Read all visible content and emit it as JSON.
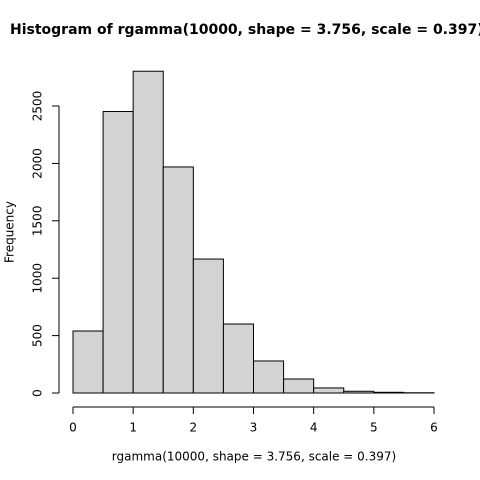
{
  "chart_data": {
    "type": "histogram",
    "title": "Histogram of rgamma(10000, shape = 3.756, scale = 0.397)",
    "x_label": "rgamma(10000, shape = 3.756, scale = 0.397)",
    "y_label": "Frequency",
    "bins": [
      0,
      0.5,
      1,
      1.5,
      2,
      2.5,
      3,
      3.5,
      4,
      4.5,
      5,
      5.5,
      6
    ],
    "values": [
      540,
      2452,
      2803,
      1969,
      1167,
      601,
      279,
      122,
      44,
      15,
      6,
      2
    ],
    "color": "#d3d3d3",
    "xlim": [
      0,
      6
    ],
    "xticks": [
      0,
      1,
      2,
      3,
      4,
      5,
      6
    ],
    "ylim": [
      0,
      2805
    ],
    "yticks": [
      0,
      500,
      1000,
      1500,
      2000,
      2500
    ]
  }
}
